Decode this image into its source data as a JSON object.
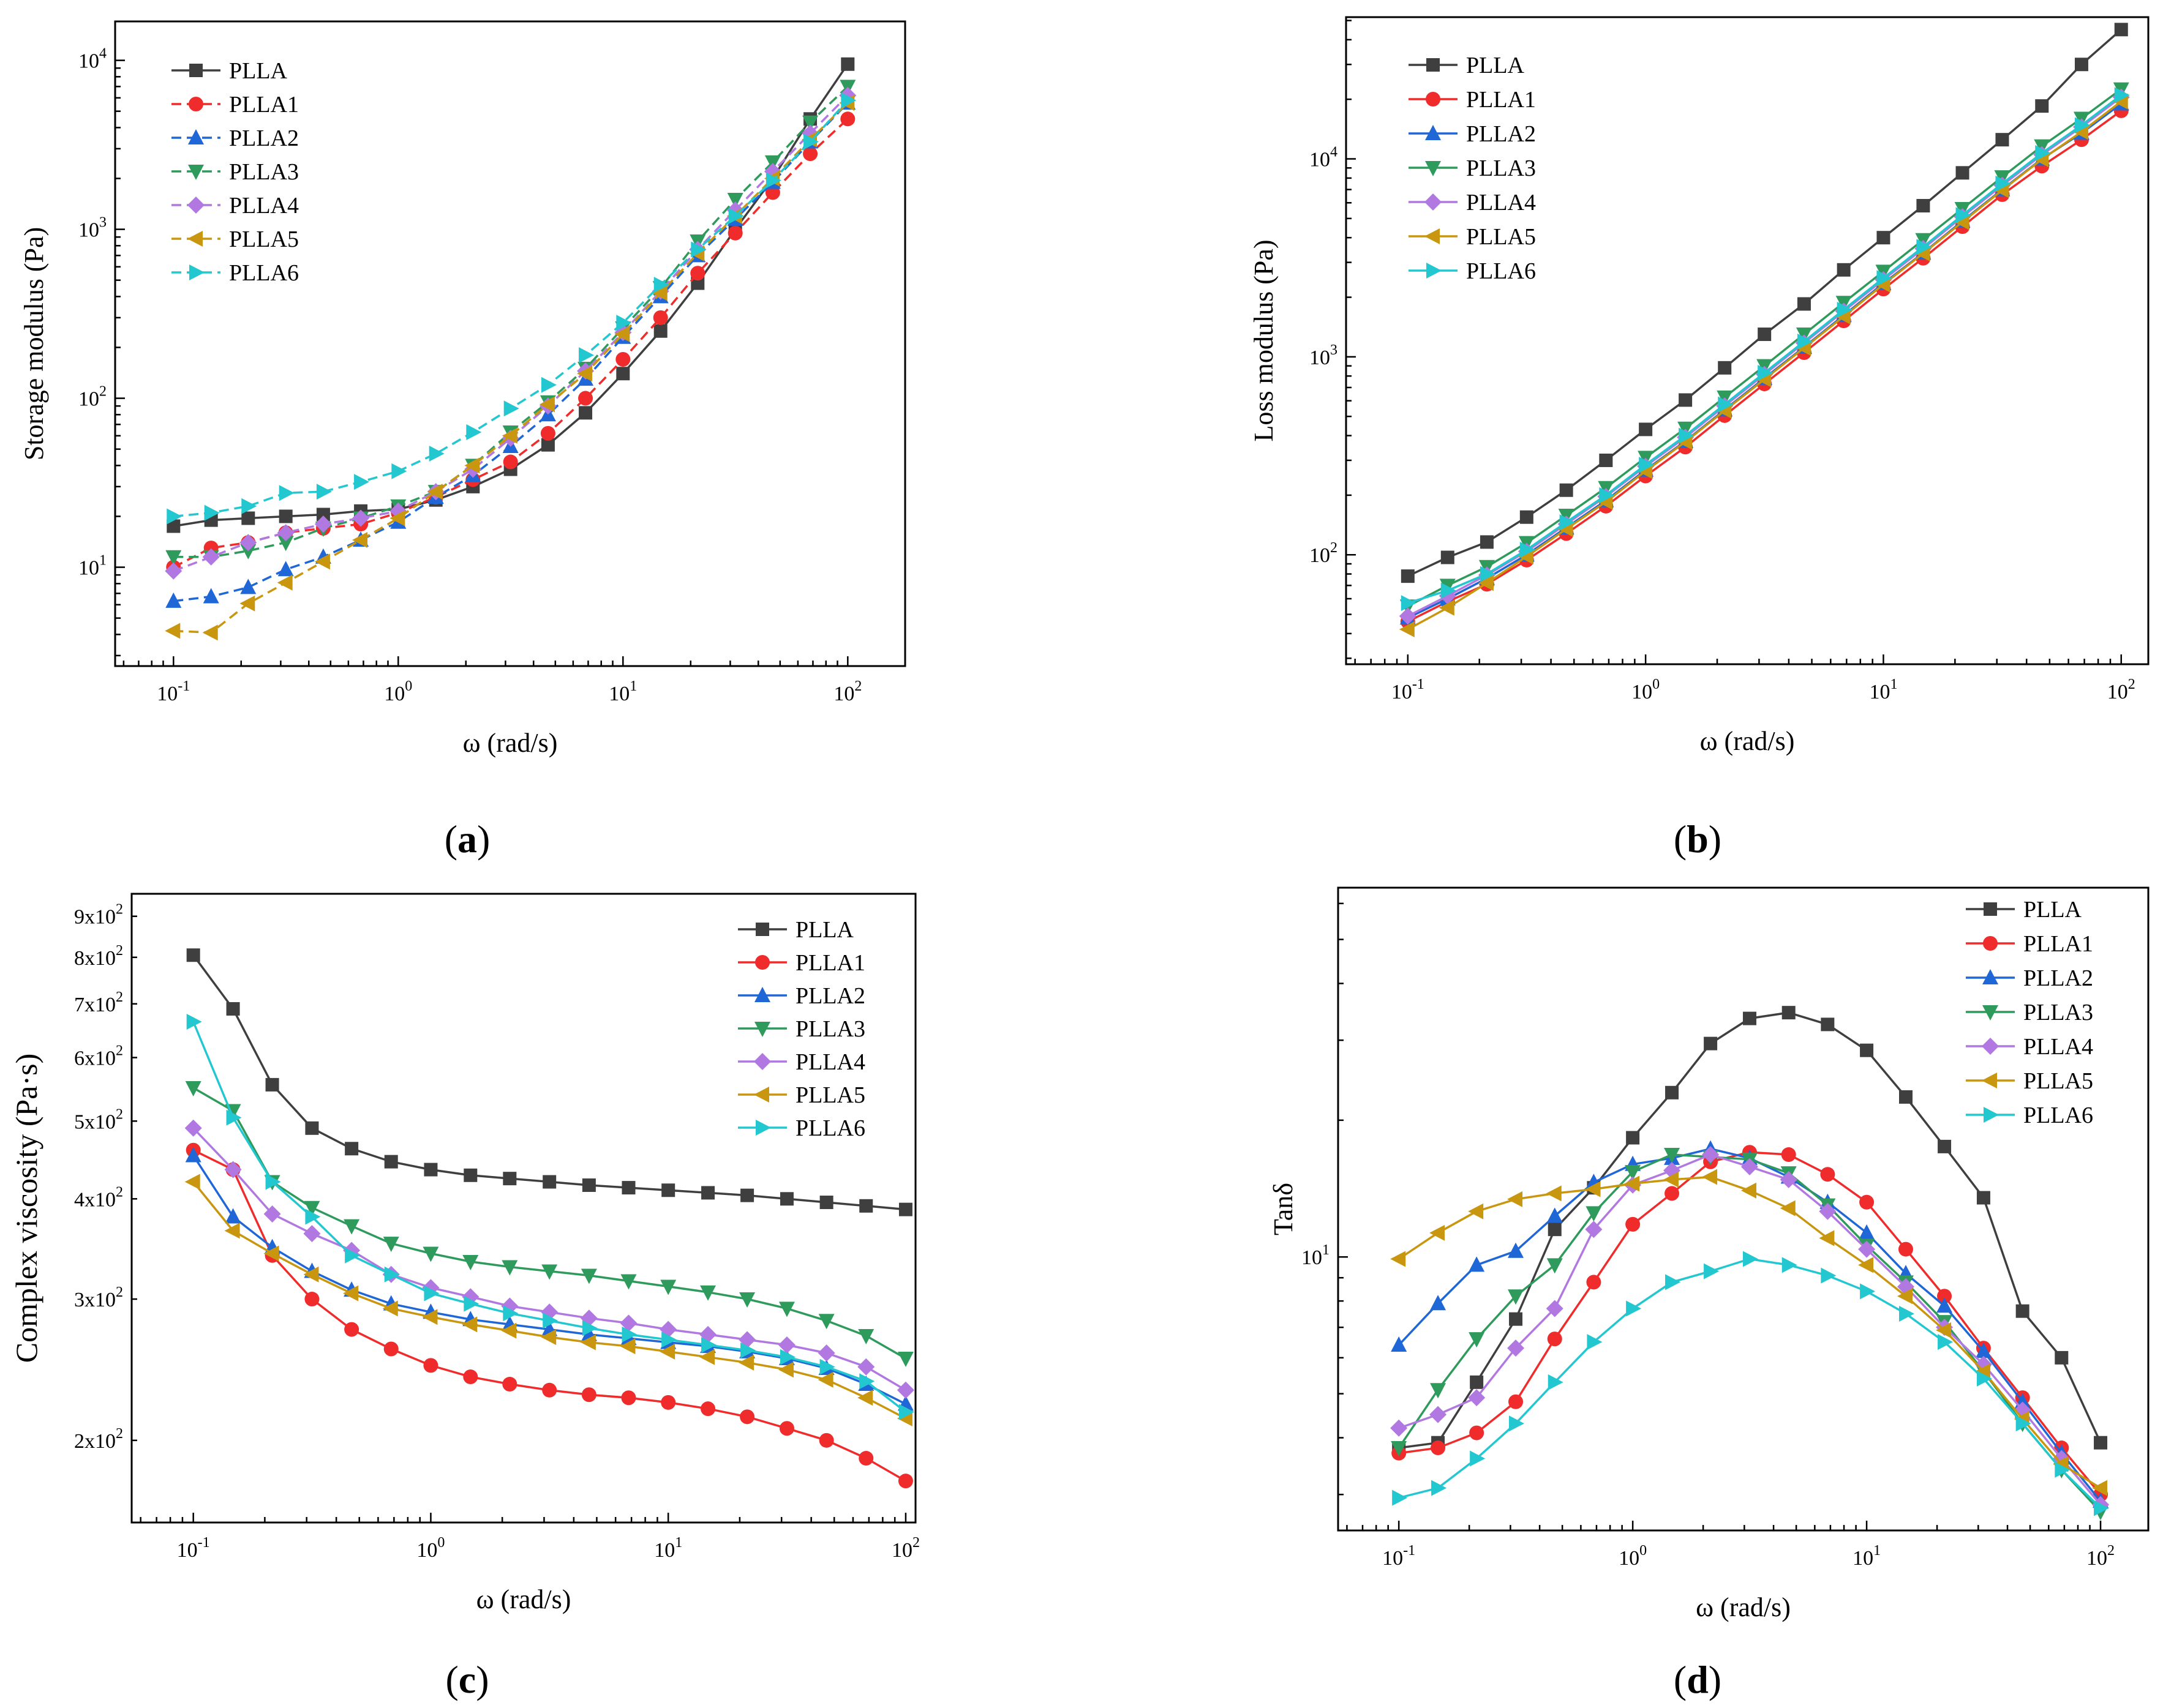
{
  "x_axis_label": "ω (rad/s)",
  "panel_labels": [
    "(a)",
    "(b)",
    "(c)",
    "(d)"
  ],
  "series_names": [
    "PLLA",
    "PLLA1",
    "PLLA2",
    "PLLA3",
    "PLLA4",
    "PLLA5",
    "PLLA6"
  ],
  "series_colors": [
    "#3f3f3f",
    "#ef2b2b",
    "#1f66d6",
    "#2e9a5c",
    "#b078e0",
    "#c8960f",
    "#22c7d0"
  ],
  "series_markers": [
    "square",
    "circle",
    "triangle-up",
    "triangle-down",
    "diamond",
    "triangle-left",
    "triangle-right"
  ],
  "chart_data": [
    {
      "id": "a",
      "type": "line",
      "scale": "log-log",
      "xlabel": "ω (rad/s)",
      "ylabel": "Storage modulus (Pa)",
      "xlim": [
        0.055,
        180
      ],
      "ylim": [
        2.6,
        17000
      ],
      "x_ticks": [
        "10^-1",
        "10^0",
        "10^1",
        "10^2"
      ],
      "y_ticks": [
        "10^1",
        "10^2",
        "10^3",
        "10^4"
      ],
      "legend_position": "top-left",
      "x": [
        0.1,
        0.147,
        0.215,
        0.316,
        0.464,
        0.681,
        1.0,
        1.47,
        2.15,
        3.16,
        4.64,
        6.81,
        10,
        14.7,
        21.5,
        31.6,
        46.4,
        68.1,
        100
      ],
      "series": [
        {
          "name": "PLLA",
          "values": [
            17.5,
            19,
            19.5,
            20,
            20.5,
            21.5,
            22,
            25,
            30,
            38,
            53,
            82,
            140,
            250,
            480,
            1000,
            2000,
            4500,
            9500
          ]
        },
        {
          "name": "PLLA1",
          "values": [
            10,
            13,
            14,
            16,
            17,
            18,
            21,
            26,
            33,
            42,
            62,
            100,
            170,
            300,
            550,
            950,
            1650,
            2800,
            4500
          ]
        },
        {
          "name": "PLLA2",
          "values": [
            6.3,
            6.7,
            7.6,
            9.7,
            11.5,
            14.5,
            18.5,
            26,
            35,
            52,
            80,
            130,
            230,
            400,
            700,
            1150,
            1900,
            3300,
            5600
          ]
        },
        {
          "name": "PLLA3",
          "values": [
            11.5,
            11.5,
            12.5,
            14,
            17,
            19.5,
            23,
            28,
            40,
            63,
            95,
            150,
            260,
            450,
            850,
            1500,
            2500,
            4300,
            7000
          ]
        },
        {
          "name": "PLLA4",
          "values": [
            9.5,
            11.5,
            14,
            16,
            18,
            19.5,
            21.5,
            28,
            38,
            58,
            90,
            145,
            245,
            430,
            760,
            1300,
            2200,
            3700,
            6200
          ]
        },
        {
          "name": "PLLA5",
          "values": [
            4.2,
            4.1,
            6.1,
            8.1,
            10.8,
            14.5,
            19.5,
            28,
            40,
            60,
            92,
            140,
            240,
            420,
            720,
            1200,
            2000,
            3400,
            5600
          ]
        },
        {
          "name": "PLLA6",
          "values": [
            20,
            21,
            23,
            27.5,
            28,
            32,
            37,
            47,
            63,
            87,
            120,
            180,
            280,
            470,
            760,
            1200,
            1950,
            3300,
            5800
          ]
        }
      ]
    },
    {
      "id": "b",
      "type": "line",
      "scale": "log-log",
      "xlabel": "ω (rad/s)",
      "ylabel": "Loss modulus (Pa)",
      "xlim": [
        0.055,
        130
      ],
      "ylim": [
        28,
        52000
      ],
      "x_ticks": [
        "10^-1",
        "10^0",
        "10^1",
        "10^2"
      ],
      "y_ticks": [
        "10^2",
        "10^3",
        "10^4"
      ],
      "legend_position": "top-left",
      "x": [
        0.1,
        0.147,
        0.215,
        0.316,
        0.464,
        0.681,
        1.0,
        1.47,
        2.15,
        3.16,
        4.64,
        6.81,
        10,
        14.7,
        21.5,
        31.6,
        46.4,
        68.1,
        100
      ],
      "series": [
        {
          "name": "PLLA",
          "values": [
            78,
            97,
            116,
            155,
            212,
            300,
            430,
            605,
            880,
            1300,
            1850,
            2750,
            4000,
            5800,
            8500,
            12500,
            18500,
            30000,
            45000
          ]
        },
        {
          "name": "PLLA1",
          "values": [
            46,
            58,
            71,
            94,
            128,
            176,
            250,
            350,
            505,
            730,
            1050,
            1520,
            2200,
            3150,
            4550,
            6600,
            9200,
            12500,
            17500
          ]
        },
        {
          "name": "PLLA2",
          "values": [
            48,
            60,
            76,
            100,
            137,
            188,
            268,
            375,
            540,
            780,
            1120,
            1620,
            2350,
            3350,
            4850,
            7000,
            10000,
            13500,
            19000
          ]
        },
        {
          "name": "PLLA3",
          "values": [
            55,
            70,
            87,
            115,
            158,
            218,
            310,
            435,
            625,
            900,
            1300,
            1880,
            2700,
            3900,
            5600,
            8100,
            11600,
            16000,
            22500
          ]
        },
        {
          "name": "PLLA4",
          "values": [
            49,
            62,
            79,
            104,
            143,
            197,
            280,
            392,
            565,
            815,
            1175,
            1700,
            2450,
            3520,
            5100,
            7350,
            10500,
            14500,
            20500
          ]
        },
        {
          "name": "PLLA5",
          "values": [
            42,
            54,
            72,
            98,
            135,
            185,
            265,
            372,
            535,
            770,
            1110,
            1600,
            2320,
            3330,
            4800,
            6950,
            9950,
            13700,
            19500
          ]
        },
        {
          "name": "PLLA6",
          "values": [
            57,
            66,
            80,
            106,
            146,
            200,
            285,
            400,
            575,
            830,
            1195,
            1730,
            2500,
            3590,
            5200,
            7500,
            10700,
            14800,
            21000
          ]
        }
      ]
    },
    {
      "id": "c",
      "type": "line",
      "scale": "log-log",
      "xlabel": "ω (rad/s)",
      "ylabel": "Complex viscosity (Pa·s)",
      "xlim": [
        0.055,
        110
      ],
      "ylim": [
        158,
        960
      ],
      "x_ticks": [
        "10^-1",
        "10^0",
        "10^1",
        "10^2"
      ],
      "y_ticks": [
        "2x10^2",
        "3x10^2",
        "4x10^2",
        "5x10^2",
        "6x10^2",
        "7x10^2",
        "8x10^2",
        "9x10^2"
      ],
      "legend_position": "top-right",
      "x": [
        0.1,
        0.147,
        0.215,
        0.316,
        0.464,
        0.681,
        1.0,
        1.47,
        2.15,
        3.16,
        4.64,
        6.81,
        10,
        14.7,
        21.5,
        31.6,
        46.4,
        68.1,
        100
      ],
      "series": [
        {
          "name": "PLLA",
          "values": [
            805,
            690,
            555,
            490,
            462,
            445,
            435,
            428,
            424,
            420,
            416,
            413,
            410,
            407,
            404,
            400,
            396,
            392,
            388
          ]
        },
        {
          "name": "PLLA1",
          "values": [
            460,
            435,
            340,
            300,
            275,
            260,
            248,
            240,
            235,
            231,
            228,
            226,
            223,
            219,
            214,
            207,
            200,
            190,
            178
          ]
        },
        {
          "name": "PLLA2",
          "values": [
            453,
            380,
            348,
            325,
            308,
            296,
            289,
            283,
            279,
            275,
            271,
            268,
            265,
            262,
            258,
            253,
            246,
            235,
            222
          ]
        },
        {
          "name": "PLLA3",
          "values": [
            550,
            515,
            420,
            390,
            370,
            352,
            342,
            334,
            329,
            325,
            321,
            316,
            311,
            306,
            300,
            292,
            282,
            270,
            253
          ]
        },
        {
          "name": "PLLA4",
          "values": [
            490,
            435,
            383,
            362,
            345,
            322,
            310,
            302,
            294,
            289,
            284,
            280,
            275,
            271,
            267,
            263,
            257,
            247,
            231
          ]
        },
        {
          "name": "PLLA5",
          "values": [
            420,
            365,
            342,
            322,
            305,
            292,
            285,
            279,
            274,
            269,
            265,
            262,
            258,
            254,
            250,
            245,
            238,
            226,
            213
          ]
        },
        {
          "name": "PLLA6",
          "values": [
            665,
            505,
            420,
            380,
            340,
            322,
            305,
            296,
            288,
            282,
            276,
            271,
            267,
            263,
            259,
            254,
            247,
            237,
            217
          ]
        }
      ]
    },
    {
      "id": "d",
      "type": "line",
      "scale": "log-log",
      "xlabel": "ω (rad/s)",
      "ylabel": "Tanδ",
      "xlim": [
        0.055,
        160
      ],
      "ylim": [
        2.5,
        65
      ],
      "x_ticks": [
        "10^-1",
        "10^0",
        "10^1",
        "10^2"
      ],
      "y_ticks": [
        "10^1"
      ],
      "legend_position": "top-right",
      "x": [
        0.1,
        0.147,
        0.215,
        0.316,
        0.464,
        0.681,
        1.0,
        1.47,
        2.15,
        3.16,
        4.64,
        6.81,
        10,
        14.7,
        21.5,
        31.6,
        46.4,
        68.1,
        100
      ],
      "series": [
        {
          "name": "PLLA",
          "values": [
            3.8,
            3.9,
            5.3,
            7.3,
            11.5,
            14.2,
            18.3,
            23.0,
            29.5,
            33.5,
            34.5,
            32.5,
            28.5,
            22.5,
            17.5,
            13.5,
            7.6,
            6.0,
            3.9
          ]
        },
        {
          "name": "PLLA1",
          "values": [
            3.7,
            3.8,
            4.1,
            4.8,
            6.6,
            8.8,
            11.8,
            13.8,
            16.2,
            17.0,
            16.8,
            15.2,
            13.2,
            10.4,
            8.2,
            6.3,
            4.9,
            3.8,
            3.0
          ]
        },
        {
          "name": "PLLA2",
          "values": [
            6.4,
            7.9,
            9.6,
            10.3,
            12.3,
            14.6,
            16.0,
            16.5,
            17.3,
            16.5,
            15.0,
            13.2,
            11.3,
            9.2,
            7.8,
            6.2,
            4.8,
            3.7,
            2.9
          ]
        },
        {
          "name": "PLLA3",
          "values": [
            3.8,
            5.1,
            6.6,
            8.2,
            9.6,
            12.5,
            15.4,
            16.8,
            16.6,
            16.4,
            15.3,
            13.0,
            10.6,
            8.8,
            7.2,
            5.6,
            4.3,
            3.4,
            2.75
          ]
        },
        {
          "name": "PLLA4",
          "values": [
            4.2,
            4.5,
            4.9,
            6.3,
            7.7,
            11.5,
            14.4,
            15.5,
            16.8,
            15.8,
            14.8,
            12.6,
            10.4,
            8.6,
            7.0,
            5.8,
            4.6,
            3.6,
            2.85
          ]
        },
        {
          "name": "PLLA5",
          "values": [
            9.9,
            11.3,
            12.6,
            13.4,
            13.8,
            14.1,
            14.5,
            14.8,
            15.0,
            14.0,
            12.8,
            11.0,
            9.6,
            8.2,
            6.9,
            5.6,
            4.4,
            3.5,
            3.1
          ]
        },
        {
          "name": "PLLA6",
          "values": [
            2.95,
            3.1,
            3.6,
            4.3,
            5.3,
            6.5,
            7.7,
            8.8,
            9.3,
            9.9,
            9.6,
            9.1,
            8.4,
            7.5,
            6.5,
            5.4,
            4.3,
            3.4,
            2.8
          ]
        }
      ]
    }
  ]
}
